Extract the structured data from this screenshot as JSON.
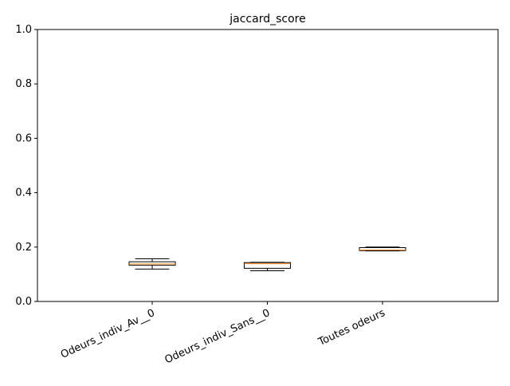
{
  "chart_data": {
    "type": "box",
    "title": "jaccard_score",
    "xlabel": "",
    "ylabel": "",
    "ylim": [
      0,
      1
    ],
    "yticks": [
      "0.0",
      "0.2",
      "0.4",
      "0.6",
      "0.8",
      "1.0"
    ],
    "grid": false,
    "categories": [
      "Odeurs_indiv_Av__0",
      "Odeurs_indiv_Sans__0",
      "Toutes odeurs"
    ],
    "boxes": [
      {
        "name": "Odeurs_indiv_Av__0",
        "whislo": 0.119,
        "q1": 0.133,
        "med": 0.138,
        "q3": 0.146,
        "whishi": 0.157
      },
      {
        "name": "Odeurs_indiv_Sans__0",
        "whislo": 0.113,
        "q1": 0.122,
        "med": 0.139,
        "q3": 0.143,
        "whishi": 0.144
      },
      {
        "name": "Toutes odeurs",
        "whislo": 0.186,
        "q1": 0.187,
        "med": 0.189,
        "q3": 0.198,
        "whishi": 0.2
      }
    ],
    "colors": {
      "box_edge": "#000000",
      "median": "#ff7f0e",
      "axes": "#000000"
    }
  }
}
